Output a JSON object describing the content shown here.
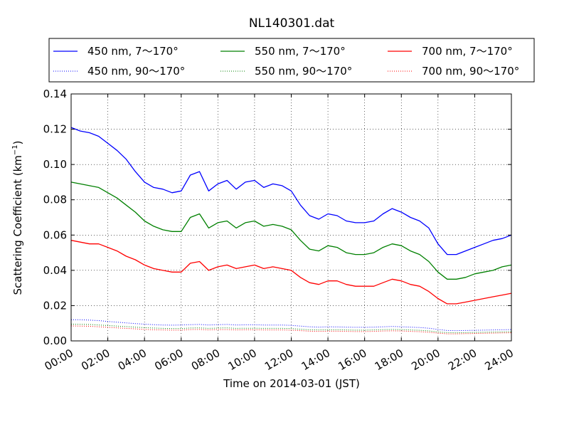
{
  "chart_data": {
    "type": "line",
    "title": "NL140301.dat",
    "xlabel": "Time on 2014-03-01 (JST)",
    "ylabel_main": "Scattering Coefficient (km",
    "ylabel_sup": "−1",
    "ylabel_tail": ")",
    "xlim": [
      0,
      24
    ],
    "ylim": [
      0,
      0.14
    ],
    "grid": true,
    "legend_position": "top",
    "x_ticks": [
      0,
      2,
      4,
      6,
      8,
      10,
      12,
      14,
      16,
      18,
      20,
      22,
      24
    ],
    "x_tick_labels": [
      "00:00",
      "02:00",
      "04:00",
      "06:00",
      "08:00",
      "10:00",
      "12:00",
      "14:00",
      "16:00",
      "18:00",
      "20:00",
      "22:00",
      "24:00"
    ],
    "y_ticks": [
      0,
      0.02,
      0.04,
      0.06,
      0.08,
      0.1,
      0.12,
      0.14
    ],
    "y_tick_labels": [
      "0.00",
      "0.02",
      "0.04",
      "0.06",
      "0.08",
      "0.10",
      "0.12",
      "0.14"
    ],
    "x": [
      0,
      0.5,
      1,
      1.5,
      2,
      2.5,
      3,
      3.5,
      4,
      4.5,
      5,
      5.5,
      6,
      6.5,
      7,
      7.5,
      8,
      8.5,
      9,
      9.5,
      10,
      10.5,
      11,
      11.5,
      12,
      12.5,
      13,
      13.5,
      14,
      14.5,
      15,
      15.5,
      16,
      16.5,
      17,
      17.5,
      18,
      18.5,
      19,
      19.5,
      20,
      20.5,
      21,
      21.5,
      22,
      22.5,
      23,
      23.5,
      24
    ],
    "series": [
      {
        "name": "450 nm, 7～170°",
        "color": "#0000ff",
        "style": "solid",
        "values": [
          0.121,
          0.119,
          0.118,
          0.116,
          0.112,
          0.108,
          0.103,
          0.096,
          0.09,
          0.087,
          0.086,
          0.084,
          0.085,
          0.094,
          0.096,
          0.085,
          0.089,
          0.091,
          0.086,
          0.09,
          0.091,
          0.087,
          0.089,
          0.088,
          0.085,
          0.077,
          0.071,
          0.069,
          0.072,
          0.071,
          0.068,
          0.067,
          0.067,
          0.068,
          0.072,
          0.075,
          0.073,
          0.07,
          0.068,
          0.064,
          0.055,
          0.049,
          0.049,
          0.051,
          0.053,
          0.055,
          0.057,
          0.058,
          0.06
        ]
      },
      {
        "name": "450 nm, 90～170°",
        "color": "#0000ff",
        "style": "dotted",
        "values": [
          0.012,
          0.012,
          0.0118,
          0.0115,
          0.011,
          0.0106,
          0.0102,
          0.0098,
          0.0095,
          0.0092,
          0.009,
          0.0089,
          0.009,
          0.0092,
          0.0093,
          0.009,
          0.0092,
          0.0093,
          0.009,
          0.0091,
          0.0091,
          0.009,
          0.009,
          0.009,
          0.0088,
          0.0084,
          0.008,
          0.0078,
          0.008,
          0.0079,
          0.0078,
          0.0077,
          0.0077,
          0.0078,
          0.008,
          0.0082,
          0.008,
          0.0078,
          0.0076,
          0.0072,
          0.0065,
          0.0059,
          0.0058,
          0.0059,
          0.006,
          0.0061,
          0.0062,
          0.0063,
          0.0064
        ]
      },
      {
        "name": "550 nm, 7～170°",
        "color": "#008000",
        "style": "solid",
        "values": [
          0.09,
          0.089,
          0.088,
          0.087,
          0.084,
          0.081,
          0.077,
          0.073,
          0.068,
          0.065,
          0.063,
          0.062,
          0.062,
          0.07,
          0.072,
          0.064,
          0.067,
          0.068,
          0.064,
          0.067,
          0.068,
          0.065,
          0.066,
          0.065,
          0.063,
          0.057,
          0.052,
          0.051,
          0.054,
          0.053,
          0.05,
          0.049,
          0.049,
          0.05,
          0.053,
          0.055,
          0.054,
          0.051,
          0.049,
          0.045,
          0.039,
          0.035,
          0.035,
          0.036,
          0.038,
          0.039,
          0.04,
          0.042,
          0.043
        ]
      },
      {
        "name": "550 nm, 90～170°",
        "color": "#008000",
        "style": "dotted",
        "values": [
          0.0095,
          0.0094,
          0.0093,
          0.009,
          0.0087,
          0.0084,
          0.0081,
          0.0078,
          0.0075,
          0.0073,
          0.0071,
          0.007,
          0.007,
          0.0073,
          0.0074,
          0.0071,
          0.0073,
          0.0074,
          0.0071,
          0.0072,
          0.0072,
          0.0071,
          0.0071,
          0.0071,
          0.007,
          0.0066,
          0.0063,
          0.0062,
          0.0063,
          0.0063,
          0.0062,
          0.0061,
          0.0061,
          0.0062,
          0.0064,
          0.0065,
          0.0064,
          0.0062,
          0.006,
          0.0057,
          0.0051,
          0.0047,
          0.0046,
          0.0047,
          0.0048,
          0.0049,
          0.005,
          0.0051,
          0.0052
        ]
      },
      {
        "name": "700 nm, 7～170°",
        "color": "#ff0000",
        "style": "solid",
        "values": [
          0.057,
          0.056,
          0.055,
          0.055,
          0.053,
          0.051,
          0.048,
          0.046,
          0.043,
          0.041,
          0.04,
          0.039,
          0.039,
          0.044,
          0.045,
          0.04,
          0.042,
          0.043,
          0.041,
          0.042,
          0.043,
          0.041,
          0.042,
          0.041,
          0.04,
          0.036,
          0.033,
          0.032,
          0.034,
          0.034,
          0.032,
          0.031,
          0.031,
          0.031,
          0.033,
          0.035,
          0.034,
          0.032,
          0.031,
          0.028,
          0.024,
          0.021,
          0.021,
          0.022,
          0.023,
          0.024,
          0.025,
          0.026,
          0.027
        ]
      },
      {
        "name": "700 nm, 90～170°",
        "color": "#ff0000",
        "style": "dotted",
        "values": [
          0.0085,
          0.0084,
          0.0083,
          0.008,
          0.0077,
          0.0074,
          0.0071,
          0.0068,
          0.0065,
          0.0063,
          0.0062,
          0.0061,
          0.0061,
          0.0064,
          0.0065,
          0.0062,
          0.0064,
          0.0064,
          0.0062,
          0.0063,
          0.0063,
          0.0062,
          0.0062,
          0.0062,
          0.0061,
          0.0058,
          0.0055,
          0.0054,
          0.0055,
          0.0055,
          0.0054,
          0.0053,
          0.0053,
          0.0054,
          0.0056,
          0.0057,
          0.0056,
          0.0054,
          0.0052,
          0.0049,
          0.0044,
          0.004,
          0.004,
          0.0041,
          0.0042,
          0.0043,
          0.0044,
          0.0045,
          0.0046
        ]
      }
    ]
  }
}
